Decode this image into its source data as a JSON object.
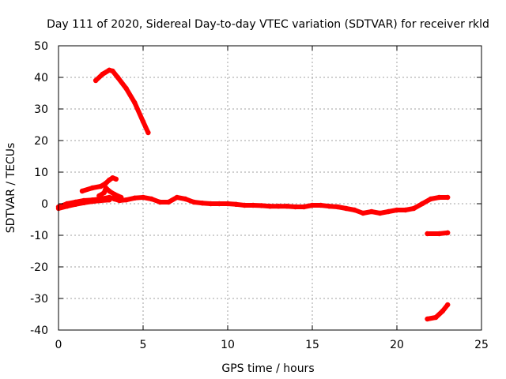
{
  "chart_data": {
    "type": "line",
    "title": "Day 111 of 2020, Sidereal Day-to-day VTEC variation (SDTVAR) for receiver rkld",
    "xlabel": "GPS time / hours",
    "ylabel": "SDTVAR / TECUs",
    "xlim": [
      0,
      25
    ],
    "ylim": [
      -40,
      50
    ],
    "x_ticks": [
      0,
      5,
      10,
      15,
      20,
      25
    ],
    "y_ticks": [
      -40,
      -30,
      -20,
      -10,
      0,
      10,
      20,
      30,
      40,
      50
    ],
    "x_tick_labels": [
      "0",
      "5",
      "10",
      "15",
      "20",
      "25"
    ],
    "y_tick_labels": [
      "-40",
      "-30",
      "-20",
      "-10",
      "0",
      "10",
      "20",
      "30",
      "40",
      "50"
    ],
    "grid": true,
    "color": "#ff0000",
    "series": [
      {
        "name": "arc-high-descending",
        "x": [
          2.2,
          2.6,
          3.0,
          3.2,
          3.5,
          4.0,
          4.5,
          5.0,
          5.3
        ],
        "y": [
          39,
          41,
          42.3,
          42,
          40,
          36.5,
          32,
          26,
          22.5
        ]
      },
      {
        "name": "arc-small-rise",
        "x": [
          1.4,
          2.0,
          2.5,
          2.8,
          3.0,
          3.2,
          3.4
        ],
        "y": [
          4,
          5,
          5.5,
          6.5,
          7.5,
          8.2,
          7.8
        ]
      },
      {
        "name": "arc-bump",
        "x": [
          2.4,
          2.7,
          2.8,
          3.0,
          3.3,
          3.7
        ],
        "y": [
          2.5,
          3.5,
          5,
          4,
          3,
          2
        ]
      },
      {
        "name": "main-trace",
        "x": [
          0,
          0.5,
          1,
          1.5,
          2,
          2.5,
          3,
          3.3,
          3.6,
          4,
          4.5,
          5,
          5.5,
          6,
          6.5,
          7,
          7.5,
          8,
          8.5,
          9,
          9.5,
          10,
          10.5,
          11,
          11.5,
          12,
          12.5,
          13,
          13.5,
          14,
          14.5,
          15,
          15.5,
          16,
          16.5,
          17,
          17.5,
          18,
          18.5,
          19,
          19.5,
          20,
          20.5,
          21,
          21.5,
          22,
          22.5,
          23
        ],
        "y": [
          -1,
          0,
          0.5,
          1,
          1.2,
          1.5,
          2,
          1.5,
          1,
          1.2,
          1.8,
          2,
          1.5,
          0.5,
          0.5,
          2,
          1.5,
          0.5,
          0.2,
          0,
          0,
          0,
          -0.2,
          -0.5,
          -0.5,
          -0.6,
          -0.8,
          -0.8,
          -0.8,
          -1,
          -1,
          -0.5,
          -0.5,
          -0.8,
          -1,
          -1.5,
          -2,
          -3,
          -2.5,
          -3,
          -2.5,
          -2,
          -2,
          -1.5,
          0,
          1.5,
          2,
          2
        ]
      },
      {
        "name": "main-trace-lower",
        "x": [
          0,
          0.5,
          1,
          1.5,
          2,
          2.5,
          3
        ],
        "y": [
          -1.5,
          -0.8,
          -0.2,
          0.3,
          0.7,
          1,
          1.2
        ]
      },
      {
        "name": "flat-segment",
        "x": [
          21.8,
          22.5,
          23.0
        ],
        "y": [
          -9.5,
          -9.5,
          -9.2
        ]
      },
      {
        "name": "low-rising-arc",
        "x": [
          21.8,
          22.3,
          22.7,
          23.0
        ],
        "y": [
          -36.5,
          -36,
          -34,
          -32
        ]
      }
    ]
  }
}
